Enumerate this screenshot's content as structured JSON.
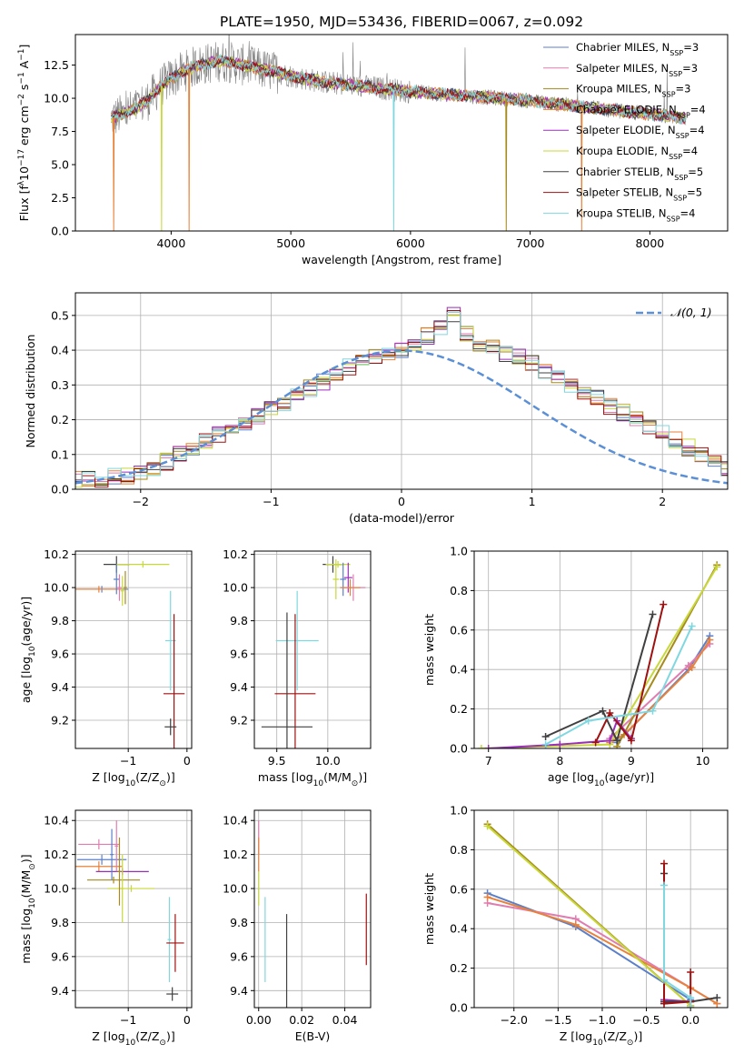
{
  "figure_title": "PLATE=1950, MJD=53436, FIBERID=0067, z=0.092",
  "colors": {
    "chabrier_miles": "#5b7fc9",
    "salpeter_miles": "#e07cb0",
    "kroupa_miles": "#a58a1c",
    "chabrier_elodie": "#e8823a",
    "salpeter_elodie": "#9b30b8",
    "kroupa_elodie": "#c8d83a",
    "chabrier_stelib": "#404040",
    "salpeter_stelib": "#a01010",
    "kroupa_stelib": "#7fd8e0",
    "data": "#808080",
    "normal": "#5b8fd6",
    "grid": "#b0b0b0"
  },
  "chart_data": [
    {
      "id": "spectrum",
      "type": "line",
      "title": "PLATE=1950, MJD=53436, FIBERID=0067, z=0.092",
      "xlabel": "wavelength [Angstrom, rest frame]",
      "ylabel_parts": [
        "Flux [f",
        "λ",
        "10",
        "−17",
        " erg cm",
        "−2",
        " s",
        "−1",
        " A",
        "−1",
        "]"
      ],
      "xlim": [
        3200,
        8650
      ],
      "ylim": [
        0,
        14.8
      ],
      "xticks": [
        4000,
        5000,
        6000,
        7000,
        8000
      ],
      "yticks": [
        0.0,
        2.5,
        5.0,
        7.5,
        10.0,
        12.5
      ],
      "grid": false,
      "legend_position": "top-right",
      "legend": [
        {
          "label": "Chabrier MILES, N",
          "sub": "SSP",
          "tail": "=3",
          "color_key": "chabrier_miles"
        },
        {
          "label": "Salpeter MILES, N",
          "sub": "SSP",
          "tail": "=3",
          "color_key": "salpeter_miles"
        },
        {
          "label": "Kroupa MILES, N",
          "sub": "SSP",
          "tail": "=3",
          "color_key": "kroupa_miles"
        },
        {
          "label": "Chabrier ELODIE, N",
          "sub": "SSP",
          "tail": "=4",
          "color_key": "chabrier_elodie"
        },
        {
          "label": "Salpeter ELODIE, N",
          "sub": "SSP",
          "tail": "=4",
          "color_key": "salpeter_elodie"
        },
        {
          "label": "Kroupa ELODIE, N",
          "sub": "SSP",
          "tail": "=4",
          "color_key": "kroupa_elodie"
        },
        {
          "label": "Chabrier STELIB, N",
          "sub": "SSP",
          "tail": "=5",
          "color_key": "chabrier_stelib"
        },
        {
          "label": "Salpeter STELIB, N",
          "sub": "SSP",
          "tail": "=5",
          "color_key": "salpeter_stelib"
        },
        {
          "label": "Kroupa STELIB, N",
          "sub": "SSP",
          "tail": "=4",
          "color_key": "kroupa_stelib"
        }
      ],
      "model_continuum": {
        "x": [
          3500,
          3600,
          3700,
          3800,
          3900,
          4000,
          4100,
          4200,
          4300,
          4400,
          4500,
          4700,
          4900,
          5100,
          5300,
          5500,
          5700,
          6000,
          6300,
          6600,
          6900,
          7200,
          7400,
          7600,
          7800,
          8000,
          8200,
          8300
        ],
        "y": [
          8.5,
          8.8,
          9.2,
          9.8,
          10.8,
          11.5,
          12.0,
          12.4,
          12.6,
          12.8,
          12.7,
          12.3,
          11.9,
          11.5,
          11.2,
          11.0,
          10.8,
          10.5,
          10.3,
          10.1,
          9.9,
          9.6,
          9.4,
          9.2,
          9.0,
          8.8,
          8.6,
          8.5
        ]
      },
      "model_dropouts": [
        {
          "x": 3520,
          "color_key": "chabrier_elodie"
        },
        {
          "x": 3920,
          "color_key": "kroupa_elodie"
        },
        {
          "x": 4150,
          "color_key": "chabrier_elodie"
        },
        {
          "x": 5860,
          "color_key": "kroupa_stelib"
        },
        {
          "x": 6800,
          "color_key": "kroupa_miles"
        },
        {
          "x": 7430,
          "color_key": "chabrier_elodie"
        }
      ]
    },
    {
      "id": "residuals",
      "type": "step",
      "xlabel": "(data-model)/error",
      "ylabel": "Normed distribution",
      "xlim": [
        -2.5,
        2.5
      ],
      "ylim": [
        0,
        0.565
      ],
      "xticks": [
        -2,
        -1,
        0,
        1,
        2
      ],
      "yticks": [
        0.0,
        0.1,
        0.2,
        0.3,
        0.4,
        0.5
      ],
      "grid": true,
      "legend": [
        {
          "label": "𝒩(0, 1)",
          "color_key": "normal",
          "position": "top-right"
        }
      ],
      "bin_width": 0.1,
      "base_values": [
        0.03,
        0.03,
        0.03,
        0.04,
        0.04,
        0.05,
        0.06,
        0.08,
        0.1,
        0.12,
        0.14,
        0.16,
        0.18,
        0.19,
        0.21,
        0.23,
        0.25,
        0.27,
        0.29,
        0.31,
        0.33,
        0.35,
        0.37,
        0.38,
        0.39,
        0.4,
        0.42,
        0.44,
        0.47,
        0.5,
        0.45,
        0.42,
        0.41,
        0.39,
        0.38,
        0.36,
        0.34,
        0.32,
        0.3,
        0.28,
        0.26,
        0.24,
        0.22,
        0.2,
        0.18,
        0.16,
        0.14,
        0.12,
        0.1,
        0.08,
        0.06
      ],
      "normal_curve": true
    },
    {
      "id": "age_vs_Z",
      "type": "errorbar",
      "xlabel_parts": [
        "Z [log",
        "10",
        "(Z/Z",
        "⊙",
        ")]"
      ],
      "ylabel_parts": [
        "age  [log",
        "10",
        "(age/yr)]"
      ],
      "xlim": [
        -1.9,
        0.08
      ],
      "ylim": [
        9.03,
        10.22
      ],
      "xticks": [
        -1,
        0
      ],
      "yticks": [
        9.2,
        9.4,
        9.6,
        9.8,
        10.0,
        10.2
      ],
      "grid": true,
      "points": [
        {
          "x": -1.2,
          "y": 10.14,
          "xerr": 0.22,
          "yerr": 0.05,
          "color_key": "chabrier_stelib"
        },
        {
          "x": -0.75,
          "y": 10.14,
          "xerr": 0.45,
          "yerr": 0.02,
          "color_key": "kroupa_elodie"
        },
        {
          "x": -1.45,
          "y": 9.99,
          "xerr": 0.45,
          "yerr": 0.02,
          "color_key": "chabrier_miles"
        },
        {
          "x": -1.5,
          "y": 9.99,
          "xerr": 0.4,
          "yerr": 0.02,
          "color_key": "chabrier_elodie"
        },
        {
          "x": -1.2,
          "y": 10.05,
          "xerr": 0.05,
          "yerr": 0.09,
          "color_key": "chabrier_miles"
        },
        {
          "x": -1.15,
          "y": 10.0,
          "xerr": 0.04,
          "yerr": 0.08,
          "color_key": "salpeter_miles"
        },
        {
          "x": -1.1,
          "y": 9.98,
          "xerr": 0.03,
          "yerr": 0.09,
          "color_key": "kroupa_elodie"
        },
        {
          "x": -1.05,
          "y": 10.0,
          "xerr": 0.03,
          "yerr": 0.1,
          "color_key": "kroupa_miles"
        },
        {
          "x": -0.28,
          "y": 9.68,
          "xerr": 0.09,
          "yerr": 0.3,
          "color_key": "kroupa_stelib"
        },
        {
          "x": -0.22,
          "y": 9.36,
          "xerr": 0.18,
          "yerr": 0.48,
          "color_key": "salpeter_stelib"
        },
        {
          "x": -0.28,
          "y": 9.16,
          "xerr": 0.1,
          "yerr": 0.05,
          "color_key": "chabrier_stelib"
        }
      ]
    },
    {
      "id": "age_vs_mass",
      "type": "errorbar",
      "xlabel_parts": [
        "mass [log",
        "10",
        "(M/M",
        "⊙",
        ")]"
      ],
      "xlim": [
        9.28,
        10.42
      ],
      "ylim": [
        9.03,
        10.22
      ],
      "xticks": [
        9.5,
        10.0
      ],
      "yticks": [
        9.2,
        9.4,
        9.6,
        9.8,
        10.0,
        10.2
      ],
      "grid": true,
      "points": [
        {
          "x": 10.05,
          "y": 10.14,
          "xerr": 0.1,
          "yerr": 0.05,
          "color_key": "chabrier_stelib"
        },
        {
          "x": 10.1,
          "y": 10.14,
          "xerr": 0.12,
          "yerr": 0.02,
          "color_key": "kroupa_elodie"
        },
        {
          "x": 10.08,
          "y": 10.05,
          "xerr": 0.03,
          "yerr": 0.12,
          "color_key": "kroupa_elodie"
        },
        {
          "x": 10.15,
          "y": 10.05,
          "xerr": 0.03,
          "yerr": 0.1,
          "color_key": "chabrier_miles"
        },
        {
          "x": 10.2,
          "y": 10.06,
          "xerr": 0.04,
          "yerr": 0.09,
          "color_key": "salpeter_elodie"
        },
        {
          "x": 10.25,
          "y": 10.0,
          "xerr": 0.12,
          "yerr": 0.08,
          "color_key": "salpeter_miles"
        },
        {
          "x": 10.22,
          "y": 10.0,
          "xerr": 0.1,
          "yerr": 0.05,
          "color_key": "chabrier_elodie"
        },
        {
          "x": 9.7,
          "y": 9.68,
          "xerr": 0.21,
          "yerr": 0.3,
          "color_key": "kroupa_stelib"
        },
        {
          "x": 9.68,
          "y": 9.36,
          "xerr": 0.2,
          "yerr": 0.48,
          "color_key": "salpeter_stelib"
        },
        {
          "x": 9.6,
          "y": 9.16,
          "xerr": 0.25,
          "yerr": 0.69,
          "color_key": "chabrier_stelib"
        }
      ]
    },
    {
      "id": "massweight_vs_age",
      "type": "line",
      "xlabel_parts": [
        "age  [log",
        "10",
        "(age/yr)]"
      ],
      "ylabel": "mass weight",
      "xlim": [
        6.8,
        10.35
      ],
      "ylim": [
        0,
        1.0
      ],
      "xticks": [
        7,
        8,
        9,
        10
      ],
      "yticks": [
        0.0,
        0.2,
        0.4,
        0.6,
        0.8,
        1.0
      ],
      "grid": true,
      "series": [
        {
          "color_key": "chabrier_miles",
          "x": [
            8.8,
            9.8,
            10.1
          ],
          "y": [
            0.03,
            0.4,
            0.57
          ]
        },
        {
          "color_key": "salpeter_miles",
          "x": [
            8.7,
            9.8,
            10.1
          ],
          "y": [
            0.05,
            0.42,
            0.53
          ]
        },
        {
          "color_key": "chabrier_elodie",
          "x": [
            8.7,
            8.9,
            9.85,
            10.1
          ],
          "y": [
            0.03,
            0.07,
            0.41,
            0.55
          ]
        },
        {
          "color_key": "kroupa_miles",
          "x": [
            8.8,
            10.2
          ],
          "y": [
            0.01,
            0.93
          ]
        },
        {
          "color_key": "kroupa_elodie",
          "x": [
            6.9,
            8.7,
            10.2
          ],
          "y": [
            0.0,
            0.02,
            0.92
          ]
        },
        {
          "color_key": "salpeter_elodie",
          "x": [
            7.0,
            8.0,
            8.7,
            8.8,
            9.0
          ],
          "y": [
            0.0,
            0.02,
            0.04,
            0.14,
            0.05
          ]
        },
        {
          "color_key": "chabrier_stelib",
          "x": [
            7.8,
            8.6,
            8.8,
            9.3
          ],
          "y": [
            0.06,
            0.19,
            0.04,
            0.68
          ]
        },
        {
          "color_key": "salpeter_stelib",
          "x": [
            8.5,
            8.7,
            9.0,
            9.45
          ],
          "y": [
            0.03,
            0.18,
            0.04,
            0.73
          ]
        },
        {
          "color_key": "kroupa_stelib",
          "x": [
            7.8,
            8.4,
            9.3,
            9.85
          ],
          "y": [
            0.02,
            0.14,
            0.19,
            0.62
          ]
        }
      ]
    },
    {
      "id": "mass_vs_Z",
      "type": "errorbar",
      "xlabel_parts": [
        "Z [log",
        "10",
        "(Z/Z",
        "⊙",
        ")]"
      ],
      "ylabel_parts": [
        "mass [log",
        "10",
        "(M/M",
        "⊙",
        ")]"
      ],
      "xlim": [
        -1.9,
        0.08
      ],
      "ylim": [
        9.3,
        10.46
      ],
      "xticks": [
        -1,
        0
      ],
      "yticks": [
        9.4,
        9.6,
        9.8,
        10.0,
        10.2,
        10.4
      ],
      "grid": true,
      "points": [
        {
          "x": -1.5,
          "y": 10.26,
          "xerr": 0.35,
          "yerr": 0.03,
          "color_key": "salpeter_miles"
        },
        {
          "x": -1.45,
          "y": 10.17,
          "xerr": 0.42,
          "yerr": 0.03,
          "color_key": "chabrier_miles"
        },
        {
          "x": -1.5,
          "y": 10.13,
          "xerr": 0.4,
          "yerr": 0.03,
          "color_key": "chabrier_elodie"
        },
        {
          "x": -1.1,
          "y": 10.1,
          "xerr": 0.45,
          "yerr": 0.02,
          "color_key": "salpeter_elodie"
        },
        {
          "x": -1.25,
          "y": 10.05,
          "xerr": 0.45,
          "yerr": 0.02,
          "color_key": "kroupa_miles"
        },
        {
          "x": -0.95,
          "y": 10.0,
          "xerr": 0.4,
          "yerr": 0.02,
          "color_key": "kroupa_elodie"
        },
        {
          "x": -1.28,
          "y": 10.2,
          "xerr": 0.03,
          "yerr": 0.15,
          "color_key": "chabrier_miles"
        },
        {
          "x": -1.2,
          "y": 10.25,
          "xerr": 0.03,
          "yerr": 0.15,
          "color_key": "salpeter_miles"
        },
        {
          "x": -1.15,
          "y": 10.1,
          "xerr": 0.03,
          "yerr": 0.2,
          "color_key": "kroupa_miles"
        },
        {
          "x": -1.1,
          "y": 10.0,
          "xerr": 0.03,
          "yerr": 0.2,
          "color_key": "kroupa_elodie"
        },
        {
          "x": -0.3,
          "y": 9.7,
          "xerr": 0.03,
          "yerr": 0.25,
          "color_key": "kroupa_stelib"
        },
        {
          "x": -0.2,
          "y": 9.68,
          "xerr": 0.15,
          "yerr": 0.17,
          "color_key": "salpeter_stelib"
        },
        {
          "x": -0.25,
          "y": 9.38,
          "xerr": 0.1,
          "yerr": 0.04,
          "color_key": "chabrier_stelib"
        }
      ]
    },
    {
      "id": "mass_vs_ebv",
      "type": "errorbar",
      "xlabel": "E(B-V)",
      "xlim": [
        -0.002,
        0.052
      ],
      "ylim": [
        9.3,
        10.46
      ],
      "xticks": [
        0.0,
        0.02,
        0.04
      ],
      "yticks": [
        9.4,
        9.6,
        9.8,
        10.0,
        10.2,
        10.4
      ],
      "grid": true,
      "points": [
        {
          "x": 0.0,
          "y": 10.3,
          "xerr": 0,
          "yerr": 0.1,
          "color_key": "salpeter_miles"
        },
        {
          "x": 0.0,
          "y": 10.2,
          "xerr": 0,
          "yerr": 0.1,
          "color_key": "chabrier_elodie"
        },
        {
          "x": 0.0,
          "y": 10.0,
          "xerr": 0,
          "yerr": 0.1,
          "color_key": "kroupa_elodie"
        },
        {
          "x": 0.003,
          "y": 9.7,
          "xerr": 0,
          "yerr": 0.25,
          "color_key": "kroupa_stelib"
        },
        {
          "x": 0.013,
          "y": 9.51,
          "xerr": 0,
          "yerr": 0.34,
          "color_key": "chabrier_stelib"
        },
        {
          "x": 0.05,
          "y": 9.76,
          "xerr": 0,
          "yerr": 0.21,
          "color_key": "salpeter_stelib"
        }
      ]
    },
    {
      "id": "massweight_vs_Z",
      "type": "line",
      "xlabel_parts": [
        "Z [log",
        "10",
        "(Z/Z",
        "⊙",
        ")]"
      ],
      "ylabel": "mass weight",
      "xlim": [
        -2.45,
        0.42
      ],
      "ylim": [
        0,
        1.0
      ],
      "xticks": [
        -2.0,
        -1.5,
        -1.0,
        -0.5,
        0.0
      ],
      "yticks": [
        0.0,
        0.2,
        0.4,
        0.6,
        0.8,
        1.0
      ],
      "grid": true,
      "series": [
        {
          "color_key": "chabrier_miles",
          "x": [
            -2.3,
            -1.3,
            0.0
          ],
          "y": [
            0.58,
            0.41,
            0.04
          ]
        },
        {
          "color_key": "salpeter_miles",
          "x": [
            -2.3,
            -1.3,
            0.3
          ],
          "y": [
            0.53,
            0.45,
            0.02
          ]
        },
        {
          "color_key": "chabrier_elodie",
          "x": [
            -2.3,
            -1.3,
            0.0,
            0.3
          ],
          "y": [
            0.56,
            0.42,
            0.1,
            0.02
          ]
        },
        {
          "color_key": "kroupa_miles",
          "x": [
            -2.3,
            0.0
          ],
          "y": [
            0.93,
            0.01
          ]
        },
        {
          "color_key": "kroupa_elodie",
          "x": [
            -2.3,
            0.0
          ],
          "y": [
            0.92,
            0.01
          ]
        },
        {
          "color_key": "salpeter_elodie",
          "x": [
            -0.3,
            -0.3,
            0.0,
            0.0
          ],
          "y": [
            0.03,
            0.04,
            0.03,
            0.0
          ]
        },
        {
          "color_key": "chabrier_stelib",
          "x": [
            -0.3,
            -0.3,
            0.0,
            0.3
          ],
          "y": [
            0.68,
            0.03,
            0.03,
            0.05
          ]
        },
        {
          "color_key": "salpeter_stelib",
          "x": [
            -0.3,
            -0.3,
            0.0,
            0.0
          ],
          "y": [
            0.73,
            0.02,
            0.03,
            0.18
          ]
        },
        {
          "color_key": "kroupa_stelib",
          "x": [
            -0.3,
            -0.3,
            0.0,
            0.0
          ],
          "y": [
            0.62,
            0.14,
            0.05,
            0.0
          ]
        }
      ]
    }
  ]
}
